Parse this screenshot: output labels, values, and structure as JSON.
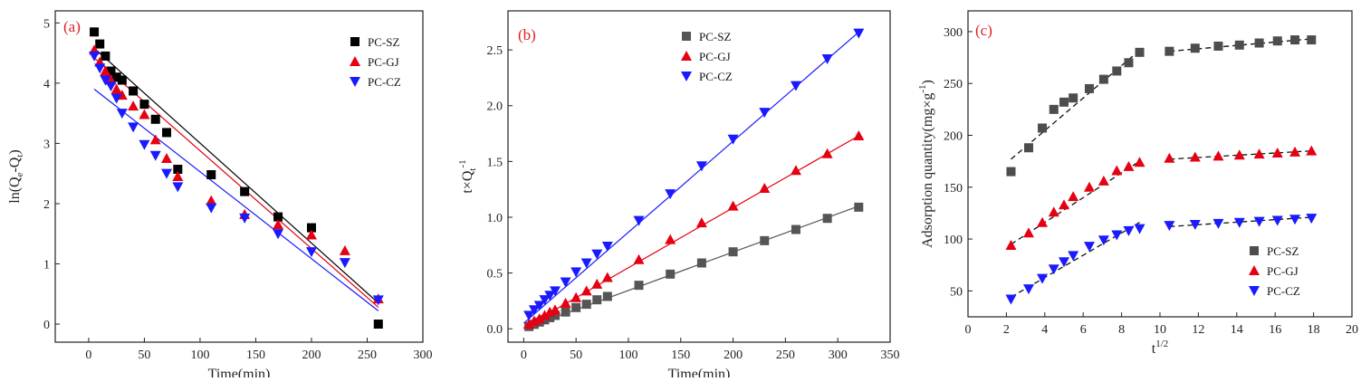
{
  "chart_data": [
    {
      "panel": "(a)",
      "type": "scatter",
      "xlabel": "Time(min)",
      "ylabel": "ln(Qₑ-Qₜ)",
      "ylabel_parts": {
        "base": "ln(Q",
        "s1": "e",
        "mid": "-Q",
        "s2": "t",
        "end": ")"
      },
      "xlim": [
        -30,
        300
      ],
      "ylim": [
        -0.3,
        5.2
      ],
      "xticks": [
        0,
        50,
        100,
        150,
        200,
        250,
        300
      ],
      "yticks": [
        0,
        1,
        2,
        3,
        4,
        5
      ],
      "legend_position": "top-right",
      "series": [
        {
          "name": "PC-SZ",
          "marker": "square",
          "color": "#000000",
          "x": [
            5,
            10,
            15,
            20,
            25,
            30,
            40,
            50,
            60,
            70,
            80,
            110,
            140,
            170,
            200,
            260
          ],
          "y": [
            4.85,
            4.65,
            4.45,
            4.2,
            4.1,
            4.05,
            3.87,
            3.65,
            3.4,
            3.18,
            2.57,
            2.48,
            2.2,
            1.78,
            1.6,
            0.0
          ],
          "fit": [
            [
              5,
              4.58
            ],
            [
              260,
              0.35
            ]
          ]
        },
        {
          "name": "PC-GJ",
          "marker": "triangle-up",
          "color": "#e60012",
          "x": [
            5,
            10,
            15,
            20,
            25,
            30,
            40,
            50,
            60,
            70,
            80,
            110,
            140,
            170,
            200,
            230,
            260
          ],
          "y": [
            4.55,
            4.35,
            4.2,
            4.05,
            3.9,
            3.8,
            3.62,
            3.48,
            3.06,
            2.75,
            2.45,
            2.05,
            1.82,
            1.65,
            1.48,
            1.22,
            0.42
          ],
          "fit": [
            [
              5,
              4.42
            ],
            [
              260,
              0.28
            ]
          ]
        },
        {
          "name": "PC-CZ",
          "marker": "triangle-down",
          "color": "#1a1aff",
          "x": [
            5,
            10,
            15,
            20,
            25,
            30,
            40,
            50,
            60,
            70,
            80,
            110,
            140,
            170,
            200,
            230,
            260
          ],
          "y": [
            4.45,
            4.25,
            4.05,
            3.95,
            3.75,
            3.5,
            3.27,
            2.98,
            2.8,
            2.5,
            2.28,
            1.93,
            1.76,
            1.5,
            1.2,
            1.02,
            0.4
          ],
          "fit": [
            [
              5,
              3.9
            ],
            [
              260,
              0.22
            ]
          ]
        }
      ]
    },
    {
      "panel": "(b)",
      "type": "scatter",
      "xlabel": "Time(min)",
      "ylabel": "t×Qₜ⁻¹",
      "ylabel_parts": {
        "base": "t×Q",
        "sub": "t",
        "sup": "-1"
      },
      "xlim": [
        -15,
        350
      ],
      "ylim": [
        -0.12,
        2.85
      ],
      "xticks": [
        0,
        50,
        100,
        150,
        200,
        250,
        300,
        350
      ],
      "yticks": [
        0.0,
        0.5,
        1.0,
        1.5,
        2.0,
        2.5
      ],
      "ytick_labels": [
        "0.0",
        "0.5",
        "1.0",
        "1.5",
        "2.0",
        "2.5"
      ],
      "legend_position": "top-center",
      "series": [
        {
          "name": "PC-SZ",
          "marker": "square",
          "color": "#555555",
          "x": [
            5,
            10,
            15,
            20,
            25,
            30,
            40,
            50,
            60,
            70,
            80,
            110,
            140,
            170,
            200,
            230,
            260,
            290,
            320
          ],
          "y": [
            0.02,
            0.04,
            0.06,
            0.08,
            0.1,
            0.12,
            0.15,
            0.19,
            0.22,
            0.26,
            0.29,
            0.39,
            0.49,
            0.59,
            0.69,
            0.79,
            0.89,
            0.99,
            1.09
          ],
          "fit": [
            [
              0,
              0.0
            ],
            [
              320,
              1.1
            ]
          ]
        },
        {
          "name": "PC-GJ",
          "marker": "triangle-up",
          "color": "#e60012",
          "x": [
            5,
            10,
            15,
            20,
            25,
            30,
            40,
            50,
            60,
            70,
            80,
            110,
            140,
            170,
            200,
            230,
            260,
            290,
            320
          ],
          "y": [
            0.04,
            0.07,
            0.09,
            0.12,
            0.15,
            0.17,
            0.23,
            0.28,
            0.34,
            0.4,
            0.46,
            0.62,
            0.8,
            0.95,
            1.1,
            1.26,
            1.42,
            1.57,
            1.73
          ],
          "fit": [
            [
              0,
              0.01
            ],
            [
              320,
              1.73
            ]
          ]
        },
        {
          "name": "PC-CZ",
          "marker": "triangle-down",
          "color": "#1a1aff",
          "x": [
            5,
            10,
            15,
            20,
            25,
            30,
            40,
            50,
            60,
            70,
            80,
            110,
            140,
            170,
            200,
            230,
            260,
            290,
            320
          ],
          "y": [
            0.12,
            0.17,
            0.21,
            0.26,
            0.3,
            0.34,
            0.42,
            0.51,
            0.59,
            0.67,
            0.74,
            0.97,
            1.21,
            1.46,
            1.7,
            1.94,
            2.18,
            2.42,
            2.65
          ],
          "fit": [
            [
              0,
              0.05
            ],
            [
              320,
              2.66
            ]
          ]
        }
      ]
    },
    {
      "panel": "(c)",
      "type": "scatter",
      "xlabel": "t¹ᐟ²",
      "xlabel_parts": {
        "base": "t",
        "sup": "1/2"
      },
      "ylabel": "Adsorption quantity(mg×g⁻¹)",
      "ylabel_parts": {
        "base": "Adsorption quantity(mg×g",
        "sup": "-1",
        "end": ")"
      },
      "xlim": [
        0,
        20
      ],
      "ylim": [
        25,
        320
      ],
      "xticks": [
        0,
        2,
        4,
        6,
        8,
        10,
        12,
        14,
        16,
        18,
        20
      ],
      "yticks": [
        50,
        100,
        150,
        200,
        250,
        300
      ],
      "legend_position": "bottom-right",
      "series": [
        {
          "name": "PC-SZ",
          "marker": "square",
          "color": "#4d4d4d",
          "x": [
            2.24,
            3.16,
            3.87,
            4.47,
            5.0,
            5.48,
            6.32,
            7.07,
            7.75,
            8.37,
            8.94,
            10.49,
            11.83,
            13.04,
            14.14,
            15.17,
            16.12,
            17.03,
            17.89
          ],
          "y": [
            165,
            188,
            207,
            225,
            232,
            236,
            245,
            254,
            262,
            270,
            280,
            281,
            284,
            286,
            287,
            289,
            291,
            292,
            292
          ],
          "fit": [
            [
              [
                2.24,
                177
              ],
              [
                8.94,
                282
              ]
            ],
            [
              [
                10.49,
                281
              ],
              [
                17.89,
                293
              ]
            ]
          ]
        },
        {
          "name": "PC-GJ",
          "marker": "triangle-up",
          "color": "#e60012",
          "x": [
            2.24,
            3.16,
            3.87,
            4.47,
            5.0,
            5.48,
            6.32,
            7.07,
            7.75,
            8.37,
            8.94,
            10.49,
            11.83,
            13.04,
            14.14,
            15.17,
            16.12,
            17.03,
            17.89
          ],
          "y": [
            94,
            106,
            116,
            126,
            133,
            141,
            150,
            156,
            166,
            170,
            174,
            178,
            179,
            180,
            181,
            182,
            183,
            184,
            185
          ],
          "fit": [
            [
              [
                2.24,
                95
              ],
              [
                8.94,
                175
              ]
            ],
            [
              [
                10.49,
                177
              ],
              [
                17.89,
                185
              ]
            ]
          ]
        },
        {
          "name": "PC-CZ",
          "marker": "triangle-down",
          "color": "#1a1aff",
          "x": [
            2.24,
            3.16,
            3.87,
            4.47,
            5.0,
            5.48,
            6.32,
            7.07,
            7.75,
            8.37,
            8.94,
            10.49,
            11.83,
            13.04,
            14.14,
            15.17,
            16.12,
            17.03,
            17.89
          ],
          "y": [
            42,
            52,
            62,
            71,
            78,
            84,
            93,
            99,
            104,
            108,
            110,
            113,
            114,
            115,
            116,
            117,
            118,
            119,
            120
          ],
          "fit": [
            [
              [
                2.24,
                44
              ],
              [
                8.94,
                116
              ]
            ],
            [
              [
                10.49,
                112
              ],
              [
                17.89,
                121
              ]
            ]
          ]
        }
      ]
    }
  ]
}
